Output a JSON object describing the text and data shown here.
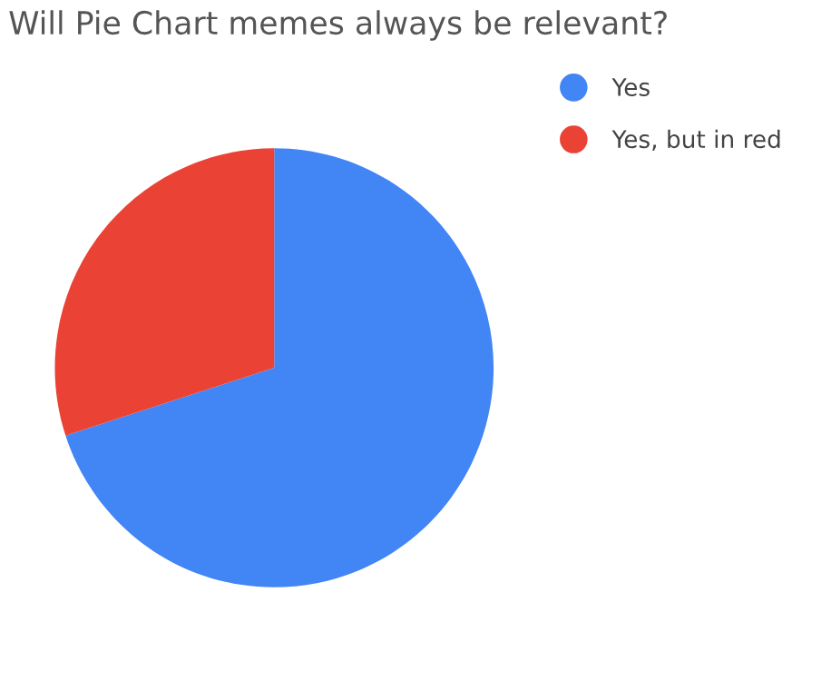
{
  "chart_data": {
    "type": "pie",
    "title": "Will Pie Chart memes always be relevant?",
    "categories": [
      "Yes",
      "Yes, but in red"
    ],
    "values": [
      70,
      30
    ],
    "colors": [
      "#4285f4",
      "#ea4335"
    ],
    "legend": "top right"
  }
}
